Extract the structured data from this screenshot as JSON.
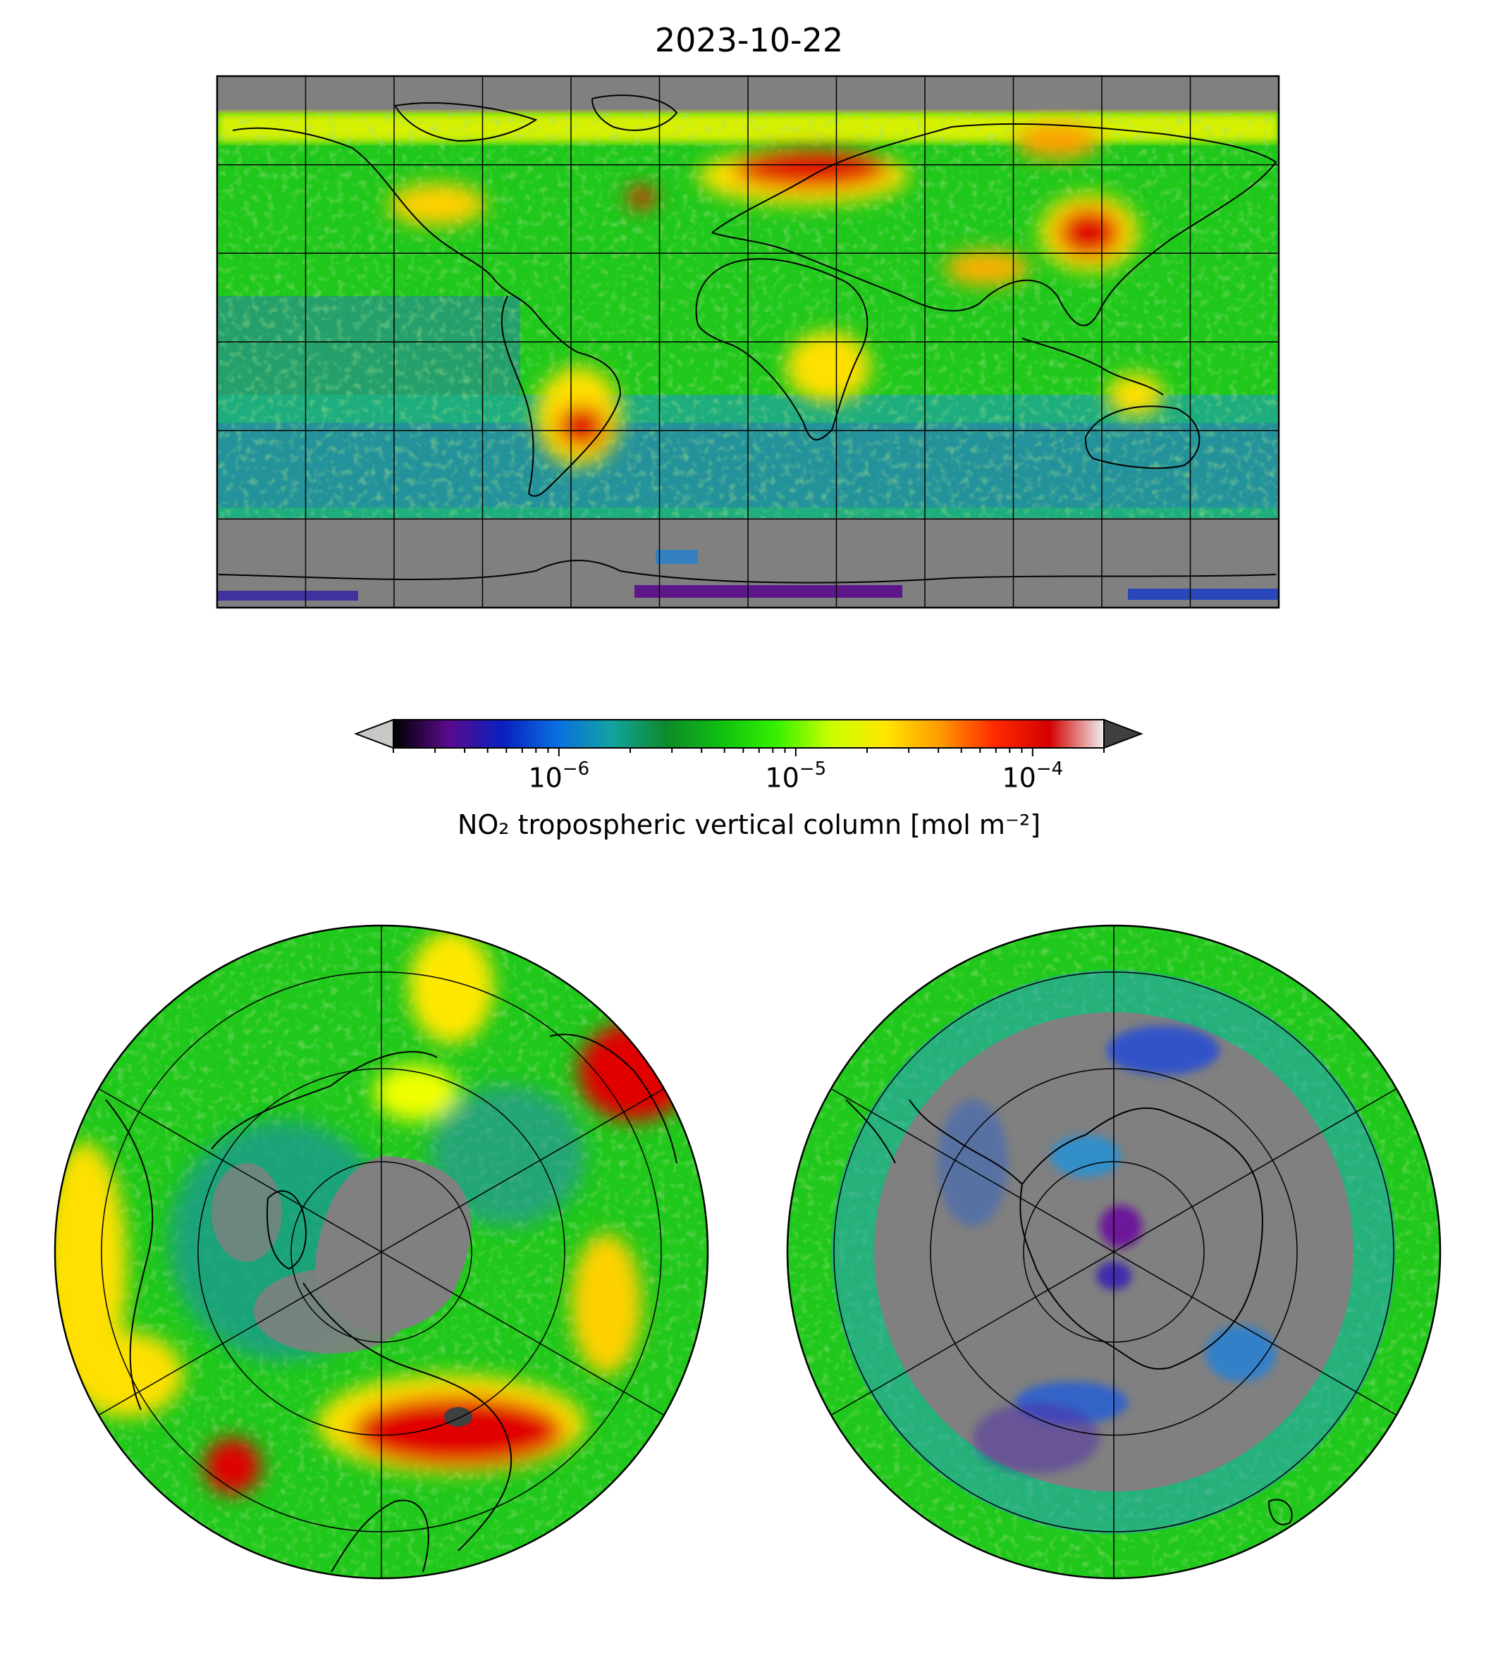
{
  "title": "2023-10-22",
  "colorbar": {
    "label": "NO₂ tropospheric vertical column [mol m⁻²]",
    "scale": "log",
    "range": [
      2e-07,
      0.0002
    ],
    "ticks": [
      {
        "base": "10",
        "exp": "−6",
        "value": 1e-06
      },
      {
        "base": "10",
        "exp": "−5",
        "value": 1e-05
      },
      {
        "base": "10",
        "exp": "−4",
        "value": 0.0001
      }
    ],
    "extend": "both",
    "colors": [
      "#000000",
      "#5a0a8c",
      "#0a1fbf",
      "#0a6fe0",
      "#11a3a0",
      "#0e8a2a",
      "#10c010",
      "#35f000",
      "#c8ff00",
      "#ffe600",
      "#ff9a00",
      "#ff2a00",
      "#d40000",
      "#f0f0f0"
    ],
    "under_color": "#c8c8c8",
    "over_color": "#404040"
  },
  "maps": {
    "global": {
      "projection": "equirectangular",
      "gridlines": "60° lon / 30° lat",
      "no_data_color": "#808080"
    },
    "north_polar": {
      "projection": "north polar stereographic"
    },
    "south_polar": {
      "projection": "south polar stereographic"
    }
  }
}
